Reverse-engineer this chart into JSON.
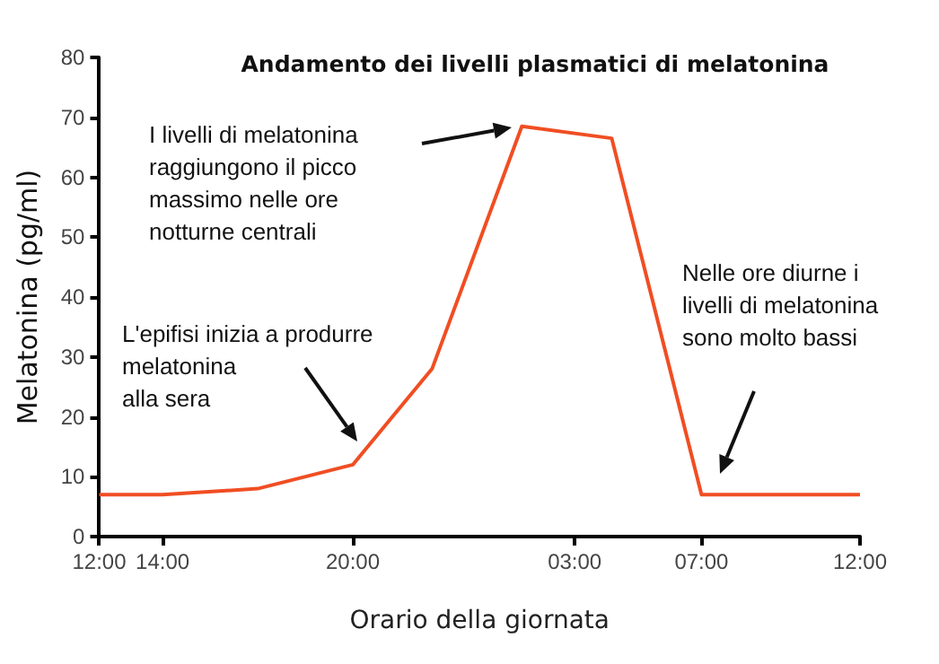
{
  "chart_data": {
    "type": "line",
    "title": "Andamento dei livelli plasmatici di melatonina",
    "xlabel": "Orario della giornata",
    "ylabel": "Melatonina (pg/ml)",
    "x": [
      "--01-01T12:00",
      "--01-01T14:00",
      "--01-01T17:00",
      "--01-01T20:00",
      "--01-01T22:30",
      "--01-02T01:20",
      "--01-02T04:10",
      "--01-02T07:00",
      "--01-02T12:00"
    ],
    "series": [
      {
        "color": "#f04e23",
        "values": [
          7,
          7,
          8,
          12,
          28,
          68.5,
          66.5,
          7,
          7
        ]
      }
    ],
    "xlim": [
      "--01-01T12:00",
      "--01-02T12:00"
    ],
    "xticks": [
      {
        "value": "--01-01T12:00",
        "label": "12:00"
      },
      {
        "value": "--01-01T14:00",
        "label": "14:00"
      },
      {
        "value": "--01-01T20:00",
        "label": "20:00"
      },
      {
        "value": "--01-02T03:00",
        "label": "03:00"
      },
      {
        "value": "--01-02T07:00",
        "label": "07:00"
      },
      {
        "value": "--01-02T12:00",
        "label": "12:00"
      }
    ],
    "ylim": [
      0,
      80
    ],
    "yticks": [
      0,
      10,
      20,
      30,
      40,
      50,
      60,
      70,
      80
    ],
    "grid": false,
    "marker": "none",
    "line_style": "solid",
    "annotations": [
      "I livelli di melatonina\nraggiungono il picco\nmassimo nelle ore\nnotturne centrali",
      "L'epifisi inizia a produrre\nmelatonina\nalla sera",
      "Nelle ore diurne i\nlivelli di melatonina\nsono molto bassi"
    ]
  }
}
